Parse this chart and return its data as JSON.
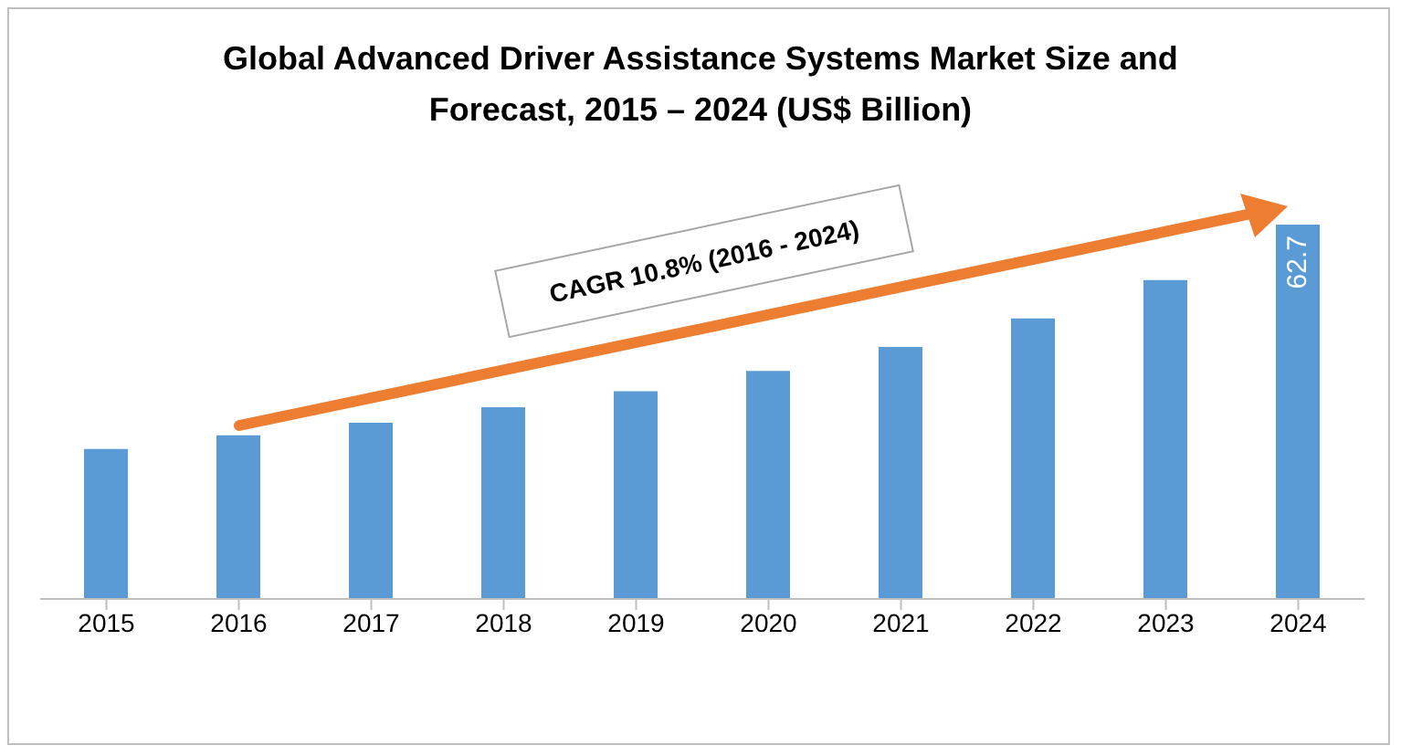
{
  "chart_data": {
    "type": "bar",
    "title": "Global Advanced Driver Assistance Systems Market Size and Forecast, 2015 – 2024 (US$ Billion)",
    "categories": [
      "2015",
      "2016",
      "2017",
      "2018",
      "2019",
      "2020",
      "2021",
      "2022",
      "2023",
      "2024"
    ],
    "values": [
      25.1,
      27.4,
      29.5,
      32.1,
      34.8,
      38.2,
      42.2,
      47.0,
      53.4,
      62.7
    ],
    "value_labels": [
      null,
      null,
      null,
      null,
      null,
      null,
      null,
      null,
      null,
      "62.7"
    ],
    "ylim": [
      0,
      62.7
    ],
    "tick_labels": "x",
    "color": "#5b9bd5",
    "grid": false,
    "legend": false,
    "annotations": [
      "CAGR 10.8% (2016 - 2024)"
    ]
  }
}
